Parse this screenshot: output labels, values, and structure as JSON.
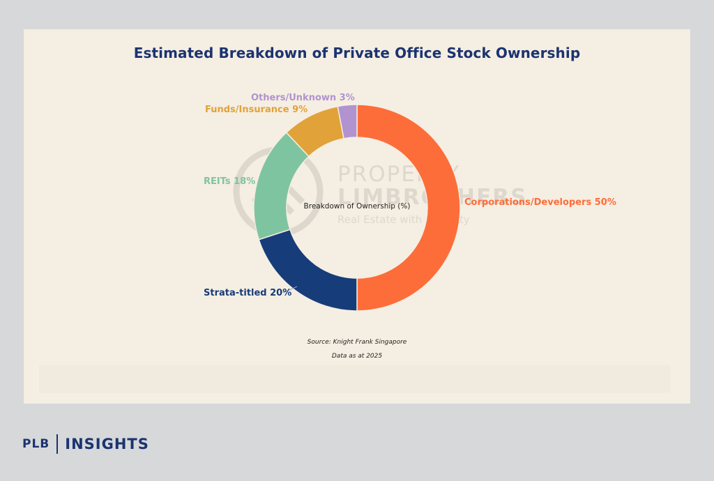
{
  "chart_data": {
    "type": "pie",
    "title": "Estimated Breakdown of Private Office Stock Ownership",
    "center_label": "Breakdown of Ownership (%)",
    "slices": [
      {
        "label": "Corporations/Developers",
        "value": 50,
        "text": "Corporations/Developers 50%",
        "color": "#fd6d3a"
      },
      {
        "label": "Strata-titled",
        "value": 20,
        "text": "Strata-titled 20%",
        "color": "#163c7a"
      },
      {
        "label": "REITs",
        "value": 18,
        "text": "REITs 18%",
        "color": "#7fc4a0"
      },
      {
        "label": "Funds/Insurance",
        "value": 9,
        "text": "Funds/Insurance 9%",
        "color": "#e1a23a"
      },
      {
        "label": "Others/Unknown",
        "value": 3,
        "text": "Others/Unknown 3%",
        "color": "#b193cf"
      }
    ],
    "source": "Source: Knight Frank Singapore",
    "note": "Data as at 2025"
  },
  "watermark": {
    "line1": "PROPERTY",
    "line2": "LIMBROTHERS",
    "line3": "Real Estate with Integrity"
  },
  "brand": {
    "plb": "PLB",
    "insights": "INSIGHTS"
  }
}
